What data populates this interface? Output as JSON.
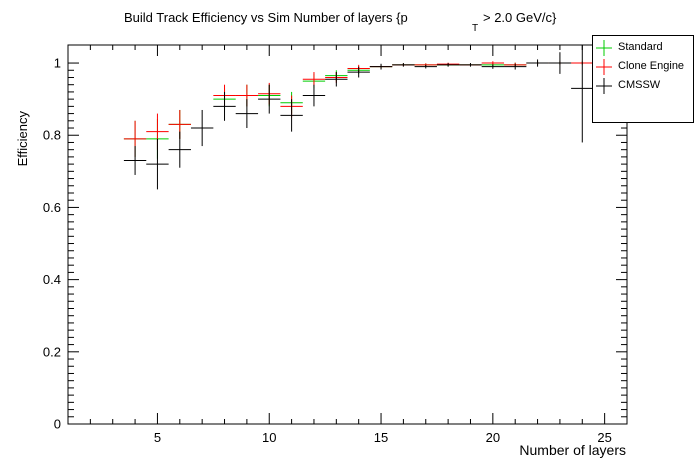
{
  "chart_data": {
    "type": "scatter",
    "title_main": "Build Track Efficiency vs Sim Number of layers {p",
    "title_sub": "T",
    "title_tail": "> 2.0 GeV/c}",
    "xlabel": "Number of layers",
    "ylabel": "Efficiency",
    "xlim": [
      1,
      26
    ],
    "ylim": [
      0,
      1.05
    ],
    "x_ticks": [
      5,
      10,
      15,
      20,
      25
    ],
    "y_ticks": [
      0,
      0.2,
      0.4,
      0.6,
      0.8,
      1
    ],
    "x_tick_labels": [
      "5",
      "10",
      "15",
      "20",
      "25"
    ],
    "y_tick_labels": [
      "0",
      "0.2",
      "0.4",
      "0.6",
      "0.8",
      "1"
    ],
    "grid": false,
    "legend_position": "top-right",
    "series": [
      {
        "name": "Standard",
        "color": "#00cc00",
        "points": [
          {
            "x": 4,
            "y": 0.79,
            "err": 0.05
          },
          {
            "x": 5,
            "y": 0.79,
            "err": 0.055
          },
          {
            "x": 6,
            "y": 0.83,
            "err": 0.04
          },
          {
            "x": 8,
            "y": 0.9,
            "err": 0.03
          },
          {
            "x": 9,
            "y": 0.91,
            "err": 0.03
          },
          {
            "x": 10,
            "y": 0.91,
            "err": 0.03
          },
          {
            "x": 11,
            "y": 0.89,
            "err": 0.03
          },
          {
            "x": 12,
            "y": 0.95,
            "err": 0.02
          },
          {
            "x": 13,
            "y": 0.965,
            "err": 0.015
          },
          {
            "x": 14,
            "y": 0.98,
            "err": 0.01
          },
          {
            "x": 15,
            "y": 0.99,
            "err": 0.005
          },
          {
            "x": 16,
            "y": 0.995,
            "err": 0.004
          },
          {
            "x": 17,
            "y": 0.995,
            "err": 0.004
          },
          {
            "x": 18,
            "y": 0.995,
            "err": 0.004
          },
          {
            "x": 19,
            "y": 0.995,
            "err": 0.004
          },
          {
            "x": 20,
            "y": 0.995,
            "err": 0.005
          },
          {
            "x": 21,
            "y": 0.995,
            "err": 0.006
          },
          {
            "x": 22,
            "y": 1.0,
            "err": 0.004
          },
          {
            "x": 23,
            "y": 1.0,
            "err": 0.004
          },
          {
            "x": 24,
            "y": 1.0,
            "err": 0.004
          }
        ]
      },
      {
        "name": "Clone Engine",
        "color": "#ff0000",
        "points": [
          {
            "x": 4,
            "y": 0.79,
            "err": 0.05
          },
          {
            "x": 5,
            "y": 0.81,
            "err": 0.05
          },
          {
            "x": 6,
            "y": 0.83,
            "err": 0.04
          },
          {
            "x": 8,
            "y": 0.91,
            "err": 0.03
          },
          {
            "x": 9,
            "y": 0.91,
            "err": 0.03
          },
          {
            "x": 10,
            "y": 0.915,
            "err": 0.03
          },
          {
            "x": 11,
            "y": 0.88,
            "err": 0.03
          },
          {
            "x": 12,
            "y": 0.955,
            "err": 0.02
          },
          {
            "x": 13,
            "y": 0.96,
            "err": 0.015
          },
          {
            "x": 14,
            "y": 0.985,
            "err": 0.01
          },
          {
            "x": 15,
            "y": 0.99,
            "err": 0.005
          },
          {
            "x": 16,
            "y": 0.995,
            "err": 0.004
          },
          {
            "x": 17,
            "y": 0.995,
            "err": 0.004
          },
          {
            "x": 18,
            "y": 0.997,
            "err": 0.004
          },
          {
            "x": 19,
            "y": 0.995,
            "err": 0.004
          },
          {
            "x": 20,
            "y": 1.0,
            "err": 0.005
          },
          {
            "x": 21,
            "y": 0.995,
            "err": 0.006
          },
          {
            "x": 22,
            "y": 1.0,
            "err": 0.004
          },
          {
            "x": 23,
            "y": 1.0,
            "err": 0.004
          },
          {
            "x": 24,
            "y": 1.0,
            "err": 0.004
          }
        ]
      },
      {
        "name": "CMSSW",
        "color": "#000000",
        "points": [
          {
            "x": 4,
            "y": 0.73,
            "err": 0.04
          },
          {
            "x": 5,
            "y": 0.72,
            "err": 0.07
          },
          {
            "x": 6,
            "y": 0.76,
            "err": 0.05
          },
          {
            "x": 7,
            "y": 0.82,
            "err": 0.05
          },
          {
            "x": 8,
            "y": 0.88,
            "err": 0.04
          },
          {
            "x": 9,
            "y": 0.86,
            "err": 0.04
          },
          {
            "x": 10,
            "y": 0.9,
            "err": 0.04
          },
          {
            "x": 11,
            "y": 0.855,
            "err": 0.045
          },
          {
            "x": 12,
            "y": 0.91,
            "err": 0.03
          },
          {
            "x": 13,
            "y": 0.955,
            "err": 0.02
          },
          {
            "x": 14,
            "y": 0.975,
            "err": 0.015
          },
          {
            "x": 15,
            "y": 0.99,
            "err": 0.008
          },
          {
            "x": 16,
            "y": 0.995,
            "err": 0.005
          },
          {
            "x": 17,
            "y": 0.99,
            "err": 0.005
          },
          {
            "x": 18,
            "y": 0.995,
            "err": 0.005
          },
          {
            "x": 19,
            "y": 0.995,
            "err": 0.005
          },
          {
            "x": 20,
            "y": 0.99,
            "err": 0.006
          },
          {
            "x": 21,
            "y": 0.99,
            "err": 0.008
          },
          {
            "x": 22,
            "y": 1.0,
            "err": 0.01
          },
          {
            "x": 23,
            "y": 1.0,
            "err": 0.03
          },
          {
            "x": 24,
            "y": 0.93,
            "err": 0.15
          }
        ]
      }
    ]
  }
}
